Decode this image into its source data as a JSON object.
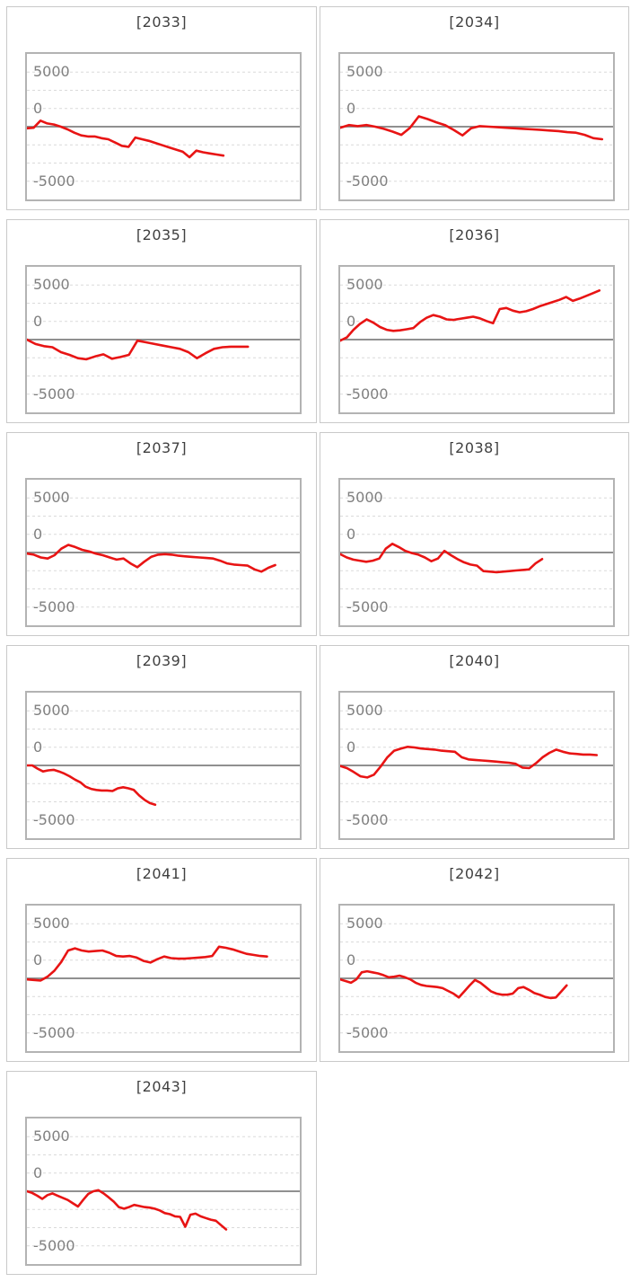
{
  "page": {
    "background": "#ffffff"
  },
  "axis": {
    "tick_labels": [
      "5000",
      "0",
      "-5000"
    ],
    "tick_values": [
      5000,
      0,
      -5000
    ],
    "ylim": [
      -6667,
      6667
    ],
    "gridline_step": 1667,
    "zero_line_value": 0,
    "grid_on": true
  },
  "colors": {
    "series": "#e81414",
    "zero_line": "#808080",
    "gridline": "#dadada",
    "tick_label": "#808080",
    "title": "#404040",
    "card_border": "#c9c9c9",
    "plot_border": "#b3b3b3"
  },
  "chart_data": {
    "type": "line",
    "layout": "small-multiples-2col",
    "ylim": [
      -6667,
      6667
    ],
    "yticks": [
      5000,
      0,
      -5000
    ],
    "legend": "none",
    "panels": [
      {
        "title": "[2033]",
        "x_extent": 0.72,
        "values": [
          -150,
          -100,
          550,
          300,
          200,
          0,
          -250,
          -550,
          -800,
          -900,
          -900,
          -1050,
          -1150,
          -1450,
          -1750,
          -1850,
          -1000,
          -1150,
          -1300,
          -1500,
          -1700,
          -1900,
          -2100,
          -2300,
          -2800,
          -2200,
          -2350,
          -2450,
          -2550,
          -2650
        ]
      },
      {
        "title": "[2034]",
        "x_extent": 0.96,
        "values": [
          -100,
          150,
          50,
          150,
          0,
          -200,
          -450,
          -750,
          -100,
          950,
          700,
          400,
          150,
          -300,
          -800,
          -150,
          50,
          0,
          -50,
          -100,
          -150,
          -200,
          -250,
          -300,
          -350,
          -400,
          -500,
          -550,
          -750,
          -1050,
          -1150
        ]
      },
      {
        "title": "[2035]",
        "x_extent": 0.81,
        "values": [
          0,
          -400,
          -600,
          -700,
          -1150,
          -1400,
          -1700,
          -1800,
          -1550,
          -1350,
          -1750,
          -1600,
          -1400,
          -100,
          -250,
          -400,
          -550,
          -700,
          -850,
          -1150,
          -1700,
          -1250,
          -850,
          -700,
          -650,
          -650,
          -650
        ]
      },
      {
        "title": "[2036]",
        "x_extent": 0.95,
        "values": [
          -100,
          200,
          900,
          1450,
          1850,
          1550,
          1150,
          900,
          800,
          850,
          950,
          1050,
          1600,
          2000,
          2250,
          2100,
          1850,
          1800,
          1900,
          2000,
          2100,
          1950,
          1700,
          1500,
          2800,
          2900,
          2650,
          2500,
          2600,
          2800,
          3050,
          3250,
          3450,
          3650,
          3900,
          3550,
          3750,
          4000,
          4250,
          4500
        ]
      },
      {
        "title": "[2037]",
        "x_extent": 0.91,
        "values": [
          -100,
          -200,
          -450,
          -550,
          -250,
          350,
          700,
          500,
          250,
          100,
          -100,
          -250,
          -450,
          -650,
          -550,
          -1000,
          -1350,
          -850,
          -400,
          -200,
          -150,
          -200,
          -300,
          -350,
          -400,
          -450,
          -500,
          -550,
          -750,
          -1000,
          -1100,
          -1150,
          -1200,
          -1550,
          -1750,
          -1400,
          -1150
        ]
      },
      {
        "title": "[2038]",
        "x_extent": 0.74,
        "values": [
          -150,
          -450,
          -650,
          -750,
          -850,
          -750,
          -550,
          350,
          800,
          500,
          150,
          -50,
          -200,
          -450,
          -800,
          -550,
          150,
          -250,
          -600,
          -900,
          -1100,
          -1200,
          -1700,
          -1750,
          -1800,
          -1750,
          -1700,
          -1650,
          -1600,
          -1550,
          -1000,
          -600
        ]
      },
      {
        "title": "[2039]",
        "x_extent": 0.47,
        "values": [
          0,
          0,
          -300,
          -550,
          -450,
          -400,
          -550,
          -750,
          -1000,
          -1300,
          -1550,
          -1950,
          -2150,
          -2250,
          -2300,
          -2300,
          -2350,
          -2100,
          -2000,
          -2100,
          -2250,
          -2750,
          -3150,
          -3450,
          -3600
        ]
      },
      {
        "title": "[2040]",
        "x_extent": 0.94,
        "values": [
          -50,
          -250,
          -600,
          -1000,
          -1100,
          -850,
          -100,
          750,
          1350,
          1550,
          1700,
          1650,
          1550,
          1500,
          1450,
          1350,
          1300,
          1250,
          750,
          550,
          500,
          450,
          400,
          350,
          300,
          250,
          150,
          -200,
          -250,
          200,
          750,
          1150,
          1450,
          1250,
          1100,
          1050,
          1000,
          1000,
          950
        ]
      },
      {
        "title": "[2041]",
        "x_extent": 0.88,
        "values": [
          -100,
          -150,
          -200,
          150,
          700,
          1500,
          2550,
          2750,
          2550,
          2450,
          2500,
          2550,
          2350,
          2050,
          2000,
          2050,
          1900,
          1600,
          1450,
          1750,
          2000,
          1850,
          1800,
          1800,
          1850,
          1900,
          1950,
          2050,
          2900,
          2800,
          2650,
          2450,
          2250,
          2150,
          2050,
          2000
        ]
      },
      {
        "title": "[2042]",
        "x_extent": 0.83,
        "values": [
          -100,
          -250,
          -400,
          -100,
          550,
          650,
          550,
          450,
          300,
          100,
          150,
          250,
          100,
          -100,
          -400,
          -600,
          -700,
          -750,
          -800,
          -900,
          -1150,
          -1400,
          -1750,
          -1200,
          -650,
          -150,
          -400,
          -800,
          -1200,
          -1400,
          -1500,
          -1500,
          -1400,
          -900,
          -800,
          -1050,
          -1350,
          -1500,
          -1700,
          -1800,
          -1750,
          -1200,
          -650
        ]
      },
      {
        "title": "[2043]",
        "x_extent": 0.73,
        "values": [
          0,
          -150,
          -400,
          -700,
          -350,
          -200,
          -400,
          -600,
          -800,
          -1100,
          -1400,
          -800,
          -250,
          0,
          100,
          -200,
          -550,
          -950,
          -1450,
          -1600,
          -1450,
          -1250,
          -1350,
          -1450,
          -1500,
          -1600,
          -1750,
          -2000,
          -2100,
          -2300,
          -2350,
          -3250,
          -2150,
          -2050,
          -2300,
          -2450,
          -2600,
          -2700,
          -3100,
          -3500
        ]
      }
    ]
  }
}
